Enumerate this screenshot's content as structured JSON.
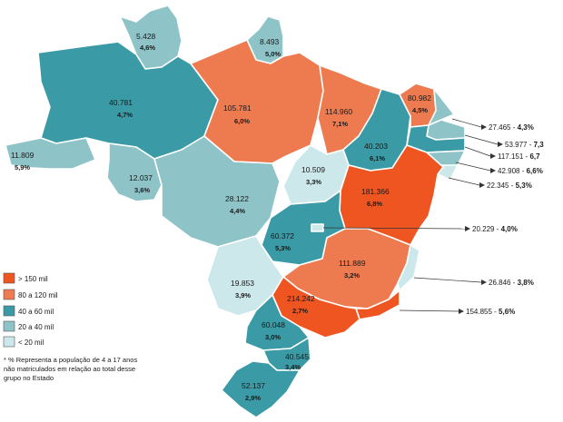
{
  "colors": {
    "gt150": "#ee5520",
    "r80_120": "#ee7a50",
    "r40_60": "#3a9aa5",
    "r20_40": "#8ec3c8",
    "lt20": "#cde8ea"
  },
  "legend": [
    {
      "label": "> 150 mil",
      "color": "#ee5520"
    },
    {
      "label": "80 a 120 mil",
      "color": "#ee7a50"
    },
    {
      "label": "40 a 60 mil",
      "color": "#3a9aa5"
    },
    {
      "label": "20 a 40 mil",
      "color": "#8ec3c8"
    },
    {
      "label": "< 20 mil",
      "color": "#cde8ea"
    }
  ],
  "note": "* % Representa a população de 4 a 17 anos não matriculados em relação ao total desse grupo no Estado",
  "states": [
    {
      "id": "rr",
      "value": "5.428",
      "pct": "4,6%"
    },
    {
      "id": "ap",
      "value": "8.493",
      "pct": "5,0%"
    },
    {
      "id": "am",
      "value": "40.781",
      "pct": "4,7%"
    },
    {
      "id": "pa",
      "value": "105.781",
      "pct": "6,0%"
    },
    {
      "id": "ma",
      "value": "114.960",
      "pct": "7,1%"
    },
    {
      "id": "ce",
      "value": "80.982",
      "pct": "4,5%"
    },
    {
      "id": "pi",
      "value": "40.203",
      "pct": "6,1%"
    },
    {
      "id": "ac",
      "value": "11.809",
      "pct": "5,9%"
    },
    {
      "id": "ro",
      "value": "12.037",
      "pct": "3,6%"
    },
    {
      "id": "mt",
      "value": "28.122",
      "pct": "4,4%"
    },
    {
      "id": "to",
      "value": "10.509",
      "pct": "3,3%"
    },
    {
      "id": "ba",
      "value": "181.366",
      "pct": "6,8%"
    },
    {
      "id": "go",
      "value": "60.372",
      "pct": "5,3%"
    },
    {
      "id": "mg",
      "value": "111.889",
      "pct": "3,2%"
    },
    {
      "id": "ms",
      "value": "19.853",
      "pct": "3,9%"
    },
    {
      "id": "sp",
      "value": "214.242",
      "pct": "2,7%"
    },
    {
      "id": "pr",
      "value": "60.048",
      "pct": "3,0%"
    },
    {
      "id": "sc",
      "value": "40.545",
      "pct": "3,4%"
    },
    {
      "id": "rs",
      "value": "52.137",
      "pct": "2,9%"
    }
  ],
  "callouts": [
    {
      "id": "rn",
      "value": "27.465",
      "pct": "4,3%"
    },
    {
      "id": "pb",
      "value": "53.977",
      "pct": "7,3"
    },
    {
      "id": "pe",
      "value": "117.151",
      "pct": "6,7"
    },
    {
      "id": "al",
      "value": "42.908",
      "pct": "6,6%"
    },
    {
      "id": "se",
      "value": "22.345",
      "pct": "5,3%"
    },
    {
      "id": "df",
      "value": "20.229",
      "pct": "4,0%"
    },
    {
      "id": "es",
      "value": "26.846",
      "pct": "3,8%"
    },
    {
      "id": "rj",
      "value": "154.855",
      "pct": "5,6%"
    }
  ]
}
